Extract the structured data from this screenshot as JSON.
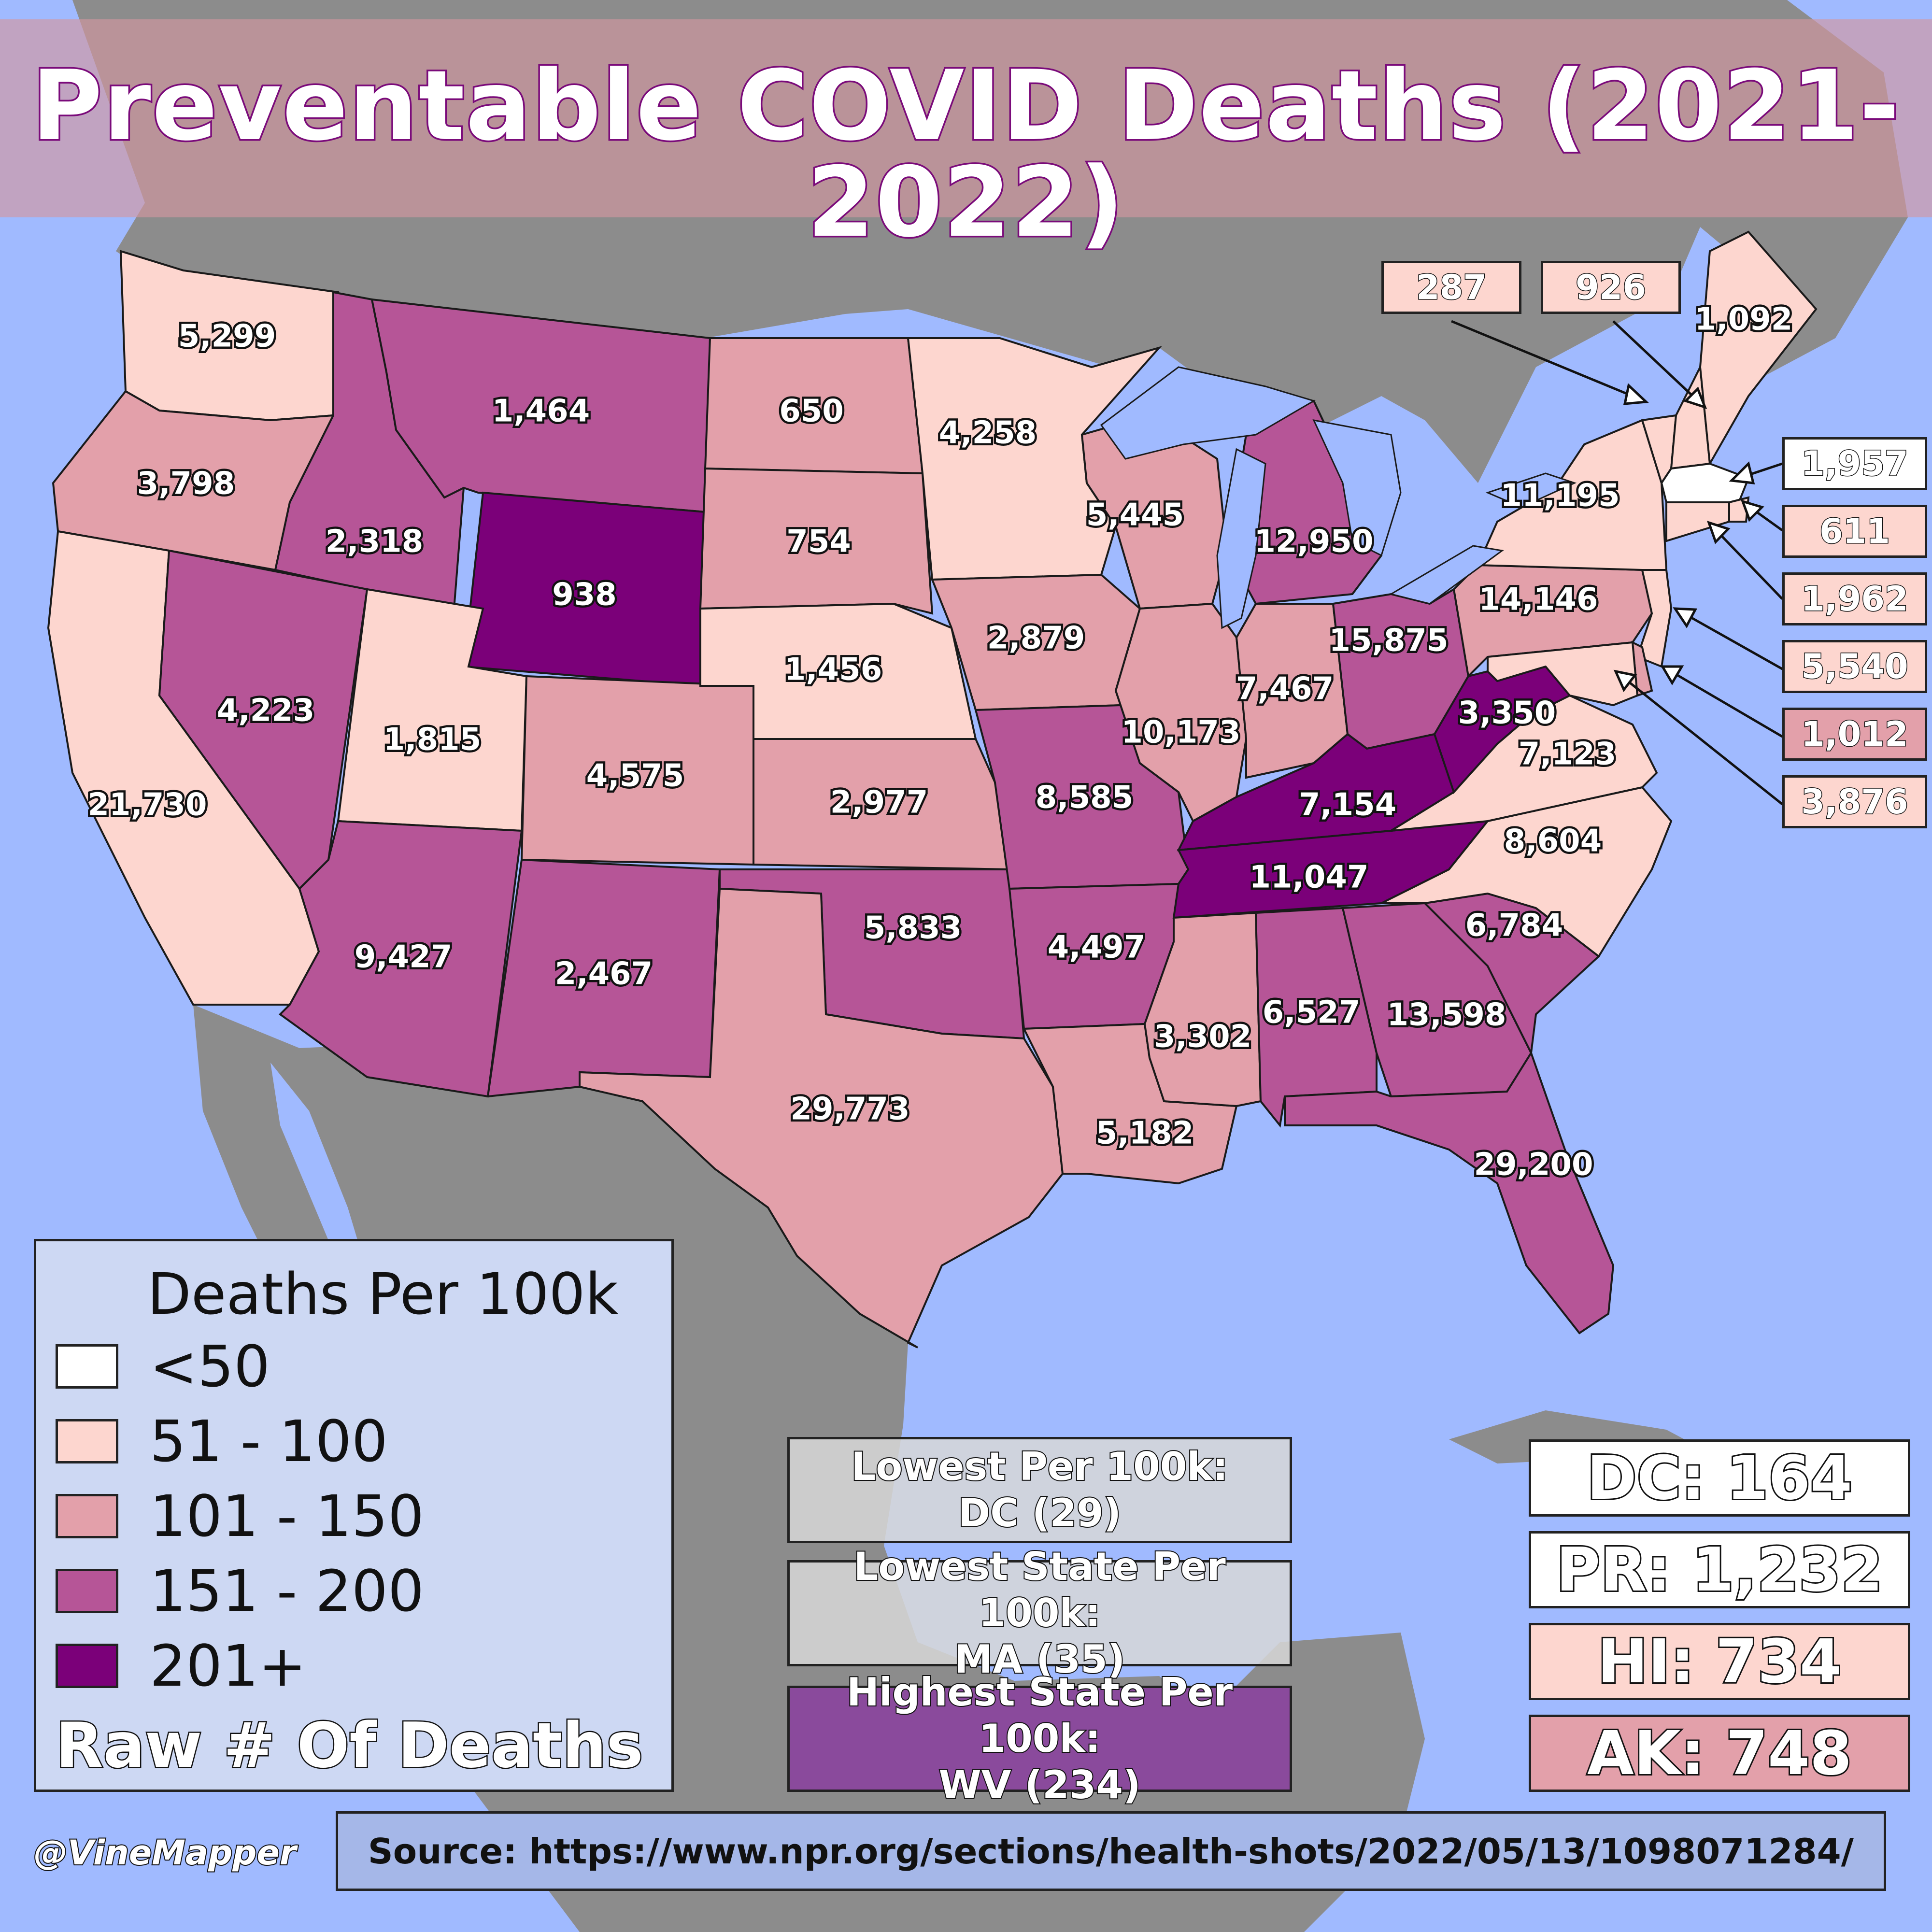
{
  "title": "Preventable COVID Deaths (2021-2022)",
  "colors": {
    "ocean": "#a0baff",
    "land_other": "#8c8c8c",
    "bin_lt50": "#ffffff",
    "bin_51_100": "#fdd6cf",
    "bin_101_150": "#e3a0aa",
    "bin_151_200": "#b65597",
    "bin_201_plus": "#7b0079"
  },
  "states": {
    "WA": {
      "deaths": "5,299",
      "bin": 1
    },
    "OR": {
      "deaths": "3,798",
      "bin": 2
    },
    "CA": {
      "deaths": "21,730",
      "bin": 1
    },
    "ID": {
      "deaths": "2,318",
      "bin": 3
    },
    "NV": {
      "deaths": "4,223",
      "bin": 3
    },
    "MT": {
      "deaths": "1,464",
      "bin": 3
    },
    "WY": {
      "deaths": "938",
      "bin": 4
    },
    "UT": {
      "deaths": "1,815",
      "bin": 1
    },
    "AZ": {
      "deaths": "9,427",
      "bin": 3
    },
    "CO": {
      "deaths": "4,575",
      "bin": 2
    },
    "NM": {
      "deaths": "2,467",
      "bin": 3
    },
    "ND": {
      "deaths": "650",
      "bin": 2
    },
    "SD": {
      "deaths": "754",
      "bin": 2
    },
    "NE": {
      "deaths": "1,456",
      "bin": 1
    },
    "KS": {
      "deaths": "2,977",
      "bin": 2
    },
    "OK": {
      "deaths": "5,833",
      "bin": 3
    },
    "TX": {
      "deaths": "29,773",
      "bin": 2
    },
    "MN": {
      "deaths": "4,258",
      "bin": 1
    },
    "IA": {
      "deaths": "2,879",
      "bin": 2
    },
    "MO": {
      "deaths": "8,585",
      "bin": 3
    },
    "AR": {
      "deaths": "4,497",
      "bin": 3
    },
    "LA": {
      "deaths": "5,182",
      "bin": 2
    },
    "WI": {
      "deaths": "5,445",
      "bin": 2
    },
    "IL": {
      "deaths": "10,173",
      "bin": 2
    },
    "MI": {
      "deaths": "12,950",
      "bin": 3
    },
    "IN": {
      "deaths": "7,467",
      "bin": 2
    },
    "OH": {
      "deaths": "15,875",
      "bin": 3
    },
    "KY": {
      "deaths": "7,154",
      "bin": 4
    },
    "TN": {
      "deaths": "11,047",
      "bin": 4
    },
    "MS": {
      "deaths": "3,302",
      "bin": 2
    },
    "AL": {
      "deaths": "6,527",
      "bin": 3
    },
    "GA": {
      "deaths": "13,598",
      "bin": 3
    },
    "FL": {
      "deaths": "29,200",
      "bin": 3
    },
    "SC": {
      "deaths": "6,784",
      "bin": 3
    },
    "NC": {
      "deaths": "8,604",
      "bin": 1
    },
    "VA": {
      "deaths": "7,123",
      "bin": 1
    },
    "WV": {
      "deaths": "3,350",
      "bin": 4
    },
    "PA": {
      "deaths": "14,146",
      "bin": 2
    },
    "NY": {
      "deaths": "11,195",
      "bin": 1
    },
    "ME": {
      "deaths": "1,092",
      "bin": 1
    },
    "VT": {
      "deaths": "287",
      "bin": 1
    },
    "NH": {
      "deaths": "926",
      "bin": 1
    },
    "MA": {
      "deaths": "1,957",
      "bin": 0
    },
    "RI": {
      "deaths": "611",
      "bin": 1
    },
    "CT": {
      "deaths": "1,962",
      "bin": 1
    },
    "NJ": {
      "deaths": "5,540",
      "bin": 1
    },
    "DE": {
      "deaths": "1,012",
      "bin": 2
    },
    "MD": {
      "deaths": "3,876",
      "bin": 1
    }
  },
  "legend": {
    "title": "Deaths Per 100k",
    "bins": [
      "<50",
      "51 - 100",
      "101 - 150",
      "151 - 200",
      "201+"
    ],
    "subtitle": "Raw # Of Deaths"
  },
  "stats": {
    "lowest_per100k": {
      "line1": "Lowest Per 100k:",
      "line2": "DC (29)"
    },
    "lowest_state": {
      "line1": "Lowest State Per 100k:",
      "line2": "MA (35)"
    },
    "highest_state": {
      "line1": "Highest State Per 100k:",
      "line2": "WV (234)"
    }
  },
  "territories": {
    "dc": "DC: 164",
    "pr": "PR: 1,232",
    "hi": "HI: 734",
    "ak": "AK: 748"
  },
  "credit": "@VineMapper",
  "source": "Source: https://www.npr.org/sections/health-shots/2022/05/13/1098071284/"
}
